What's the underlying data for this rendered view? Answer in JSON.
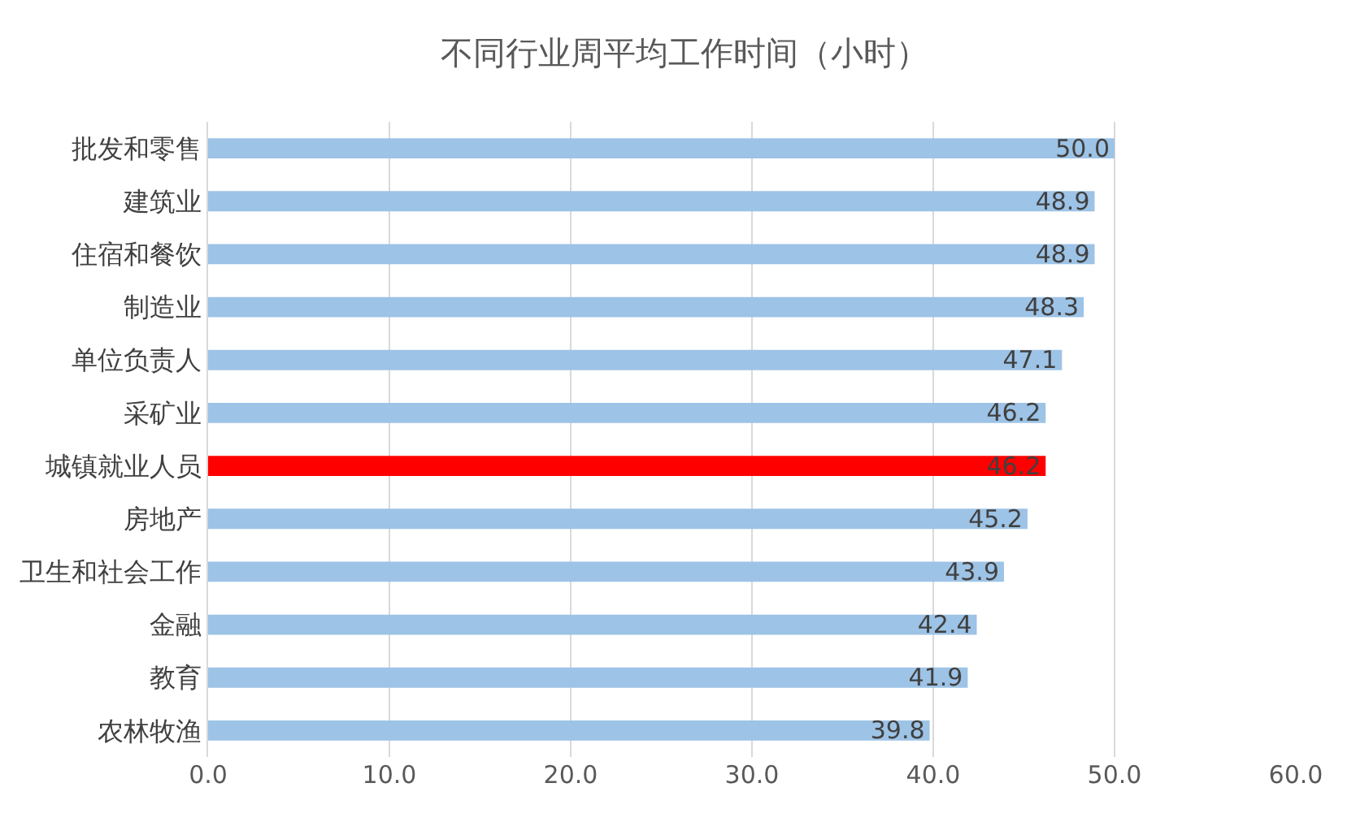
{
  "chart_data": {
    "type": "bar",
    "orientation": "horizontal",
    "title": "不同行业周平均工作时间（小时）",
    "categories": [
      "批发和零售",
      "建筑业",
      "住宿和餐饮",
      "制造业",
      "单位负责人",
      "采矿业",
      "城镇就业人员",
      "房地产",
      "卫生和社会工作",
      "金融",
      "教育",
      "农林牧渔"
    ],
    "values": [
      50.0,
      48.9,
      48.9,
      48.3,
      47.1,
      46.2,
      46.2,
      45.2,
      43.9,
      42.4,
      41.9,
      39.8
    ],
    "colors": [
      "#9dc3e6",
      "#9dc3e6",
      "#9dc3e6",
      "#9dc3e6",
      "#9dc3e6",
      "#9dc3e6",
      "#ff0000",
      "#9dc3e6",
      "#9dc3e6",
      "#9dc3e6",
      "#9dc3e6",
      "#9dc3e6"
    ],
    "xlim": [
      0,
      60
    ],
    "xticks": [
      {
        "value": 0,
        "label": "0.0"
      },
      {
        "value": 10,
        "label": "10.0"
      },
      {
        "value": 20,
        "label": "20.0"
      },
      {
        "value": 30,
        "label": "30.0"
      },
      {
        "value": 40,
        "label": "40.0"
      },
      {
        "value": 50,
        "label": "50.0"
      },
      {
        "value": 60,
        "label": "60.0"
      }
    ],
    "value_labels": [
      "50.0",
      "48.9",
      "48.9",
      "48.3",
      "47.1",
      "46.2",
      "46.2",
      "45.2",
      "43.9",
      "42.4",
      "41.9",
      "39.8"
    ],
    "grid": "x",
    "legend": false
  }
}
